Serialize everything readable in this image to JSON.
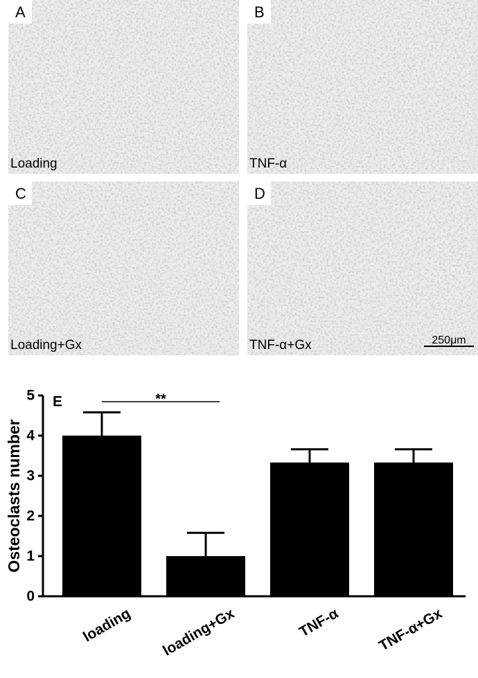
{
  "panels": [
    {
      "letter": "A",
      "caption": "Loading"
    },
    {
      "letter": "B",
      "caption": "TNF-α"
    },
    {
      "letter": "C",
      "caption": "Loading+Gx"
    },
    {
      "letter": "D",
      "caption": "TNF-α+Gx"
    }
  ],
  "scale_bar": "250μm",
  "chart_data": {
    "type": "bar",
    "panel_letter": "E",
    "ylabel": "Osteoclasts number",
    "categories": [
      "loading",
      "loading+Gx",
      "TNF-α",
      "TNF-α+Gx"
    ],
    "values": [
      4,
      1,
      3.33,
      3.33
    ],
    "errors": [
      0.58,
      0.58,
      0.33,
      0.33
    ],
    "color": "#000000",
    "ylim": [
      0,
      5
    ],
    "yticks": [
      0,
      1,
      2,
      3,
      4,
      5
    ],
    "annotation": "**"
  }
}
